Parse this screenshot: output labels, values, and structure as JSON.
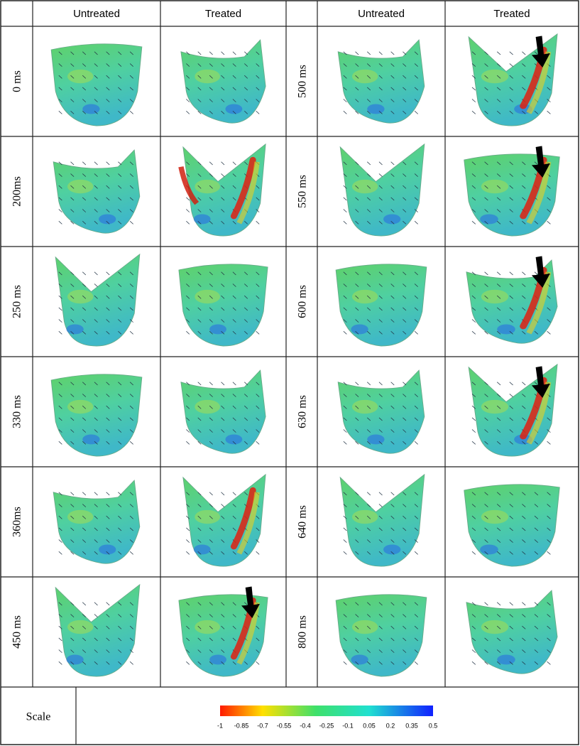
{
  "header": {
    "columns": [
      "Untreated",
      "Treated",
      "Untreated",
      "Treated"
    ]
  },
  "rows": {
    "left": [
      "0 ms",
      "200ms",
      "250 ms",
      "330 ms",
      "360ms",
      "450 ms"
    ],
    "right": [
      "500 ms",
      "550 ms",
      "600 ms",
      "630 ms",
      "640 ms",
      "800 ms"
    ]
  },
  "scale": {
    "label": "Scale",
    "ticks": [
      -1,
      -0.85,
      -0.7,
      -0.55,
      -0.4,
      -0.25,
      -0.1,
      0.05,
      0.2,
      0.35,
      0.5
    ]
  }
}
